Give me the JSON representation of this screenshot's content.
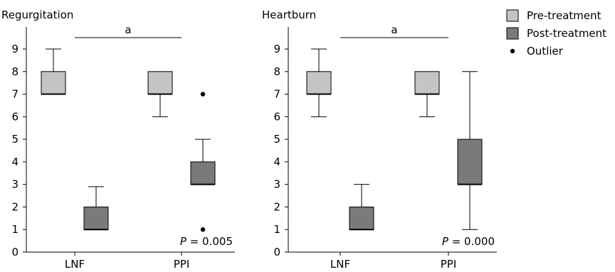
{
  "colors": {
    "pre": "#c4c4c4",
    "post": "#7a7a7a",
    "stroke": "#000000"
  },
  "chart_data": [
    {
      "type": "box",
      "title": "Regurgitation",
      "categories": [
        "LNF",
        "PPI"
      ],
      "ylim": [
        0,
        9
      ],
      "yticks": [
        0,
        1,
        2,
        3,
        4,
        5,
        6,
        7,
        8,
        9
      ],
      "grid": false,
      "series": [
        {
          "name": "Pre-treatment",
          "boxes": [
            {
              "category": "LNF",
              "min": 7,
              "q1": 7,
              "median": 7,
              "q3": 8,
              "max": 9,
              "outliers": []
            },
            {
              "category": "PPI",
              "min": 6,
              "q1": 7,
              "median": 7,
              "q3": 8,
              "max": 8,
              "outliers": []
            }
          ]
        },
        {
          "name": "Post-treatment",
          "boxes": [
            {
              "category": "LNF",
              "min": 1,
              "q1": 1,
              "median": 1,
              "q3": 2,
              "max": 2.9,
              "outliers": []
            },
            {
              "category": "PPI",
              "min": 3,
              "q1": 3,
              "median": 3,
              "q3": 4,
              "max": 5,
              "outliers": [
                7,
                1
              ]
            }
          ]
        }
      ],
      "significance_label": "a",
      "p_prefix": "P",
      "p_value": "= 0.005"
    },
    {
      "type": "box",
      "title": "Heartburn",
      "categories": [
        "LNF",
        "PPI"
      ],
      "ylim": [
        0,
        9
      ],
      "yticks": [
        0,
        1,
        2,
        3,
        4,
        5,
        6,
        7,
        8,
        9
      ],
      "grid": false,
      "series": [
        {
          "name": "Pre-treatment",
          "boxes": [
            {
              "category": "LNF",
              "min": 6,
              "q1": 7,
              "median": 7,
              "q3": 8,
              "max": 9,
              "outliers": []
            },
            {
              "category": "PPI",
              "min": 6,
              "q1": 7,
              "median": 7,
              "q3": 8,
              "max": 8,
              "outliers": []
            }
          ]
        },
        {
          "name": "Post-treatment",
          "boxes": [
            {
              "category": "LNF",
              "min": 1,
              "q1": 1,
              "median": 1,
              "q3": 2,
              "max": 3,
              "outliers": []
            },
            {
              "category": "PPI",
              "min": 1,
              "q1": 3,
              "median": 3,
              "q3": 5,
              "max": 8,
              "outliers": []
            }
          ]
        }
      ],
      "significance_label": "a",
      "p_prefix": "P",
      "p_value": "= 0.000"
    }
  ],
  "legend": {
    "placement": "top-right",
    "items": [
      {
        "label": "Pre-treatment",
        "kind": "box",
        "color_key": "pre"
      },
      {
        "label": "Post-treatment",
        "kind": "box",
        "color_key": "post"
      },
      {
        "label": "Outlier",
        "kind": "dot"
      }
    ]
  }
}
